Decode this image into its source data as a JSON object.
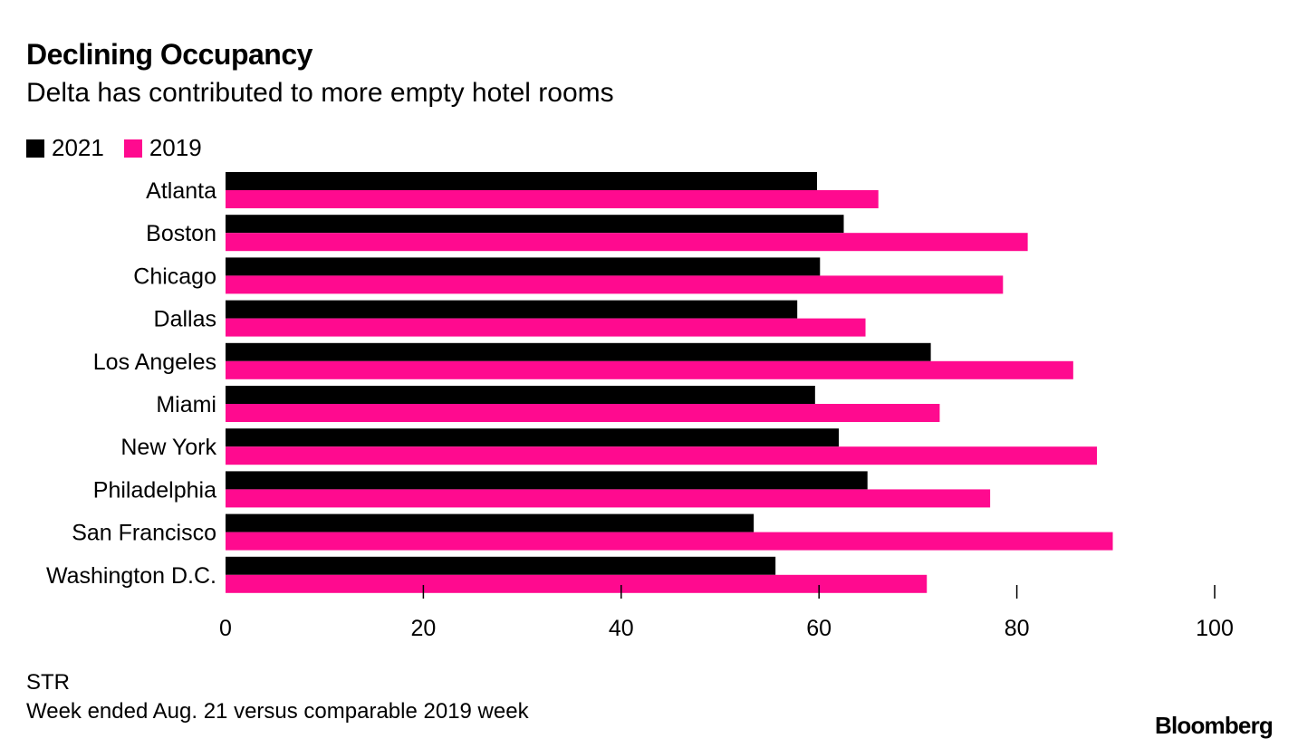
{
  "chart_data": {
    "type": "bar",
    "orientation": "horizontal",
    "title": "Declining Occupancy",
    "subtitle": "Delta has contributed to more empty hotel rooms",
    "categories": [
      "Atlanta",
      "Boston",
      "Chicago",
      "Dallas",
      "Los Angeles",
      "Miami",
      "New York",
      "Philadelphia",
      "San Francisco",
      "Washington D.C."
    ],
    "series": [
      {
        "name": "2021",
        "color": "#000000",
        "values": [
          59.8,
          62.5,
          60.1,
          57.8,
          71.3,
          59.6,
          62.0,
          64.9,
          53.4,
          55.6
        ]
      },
      {
        "name": "2019",
        "color": "#ff0a8f",
        "values": [
          66.0,
          81.1,
          78.6,
          64.7,
          85.7,
          72.2,
          88.1,
          77.3,
          89.7,
          70.9
        ]
      }
    ],
    "xlim": [
      0,
      100
    ],
    "xticks": [
      "0",
      "20",
      "40",
      "60",
      "80",
      "100"
    ],
    "grid": false,
    "legend": "top-left",
    "source": "STR",
    "note": "Week ended Aug. 21 versus comparable 2019 week",
    "brand": "Bloomberg"
  }
}
